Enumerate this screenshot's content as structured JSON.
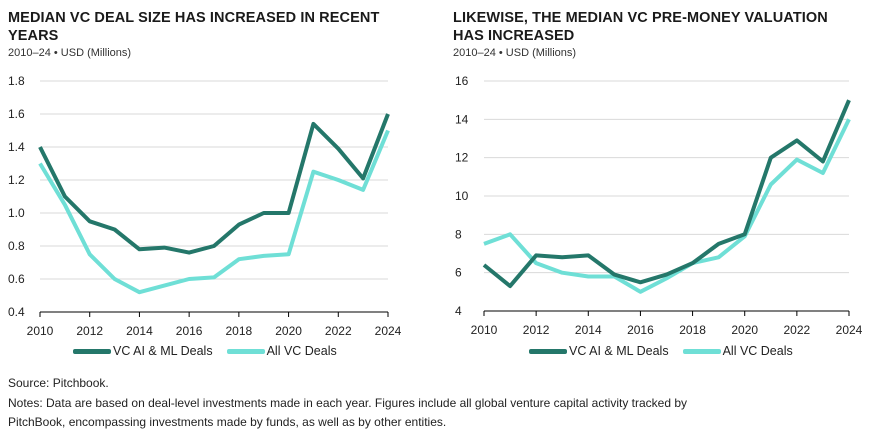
{
  "colors": {
    "ai_ml": "#24776a",
    "all_vc": "#6fdfd6",
    "grid": "#d9d9d9",
    "axis": "#000000"
  },
  "chart_data": [
    {
      "type": "line",
      "title": "MEDIAN VC DEAL SIZE HAS INCREASED IN RECENT YEARS",
      "subtitle": "2010–24 • USD (Millions)",
      "x": [
        2010,
        2011,
        2012,
        2013,
        2014,
        2015,
        2016,
        2017,
        2018,
        2019,
        2020,
        2021,
        2022,
        2023,
        2024
      ],
      "xticks": [
        2010,
        2012,
        2014,
        2016,
        2018,
        2020,
        2022,
        2024
      ],
      "yticks": [
        "0.4",
        "0.6",
        "0.8",
        "1.0",
        "1.2",
        "1.4",
        "1.6",
        "1.8"
      ],
      "ylim": [
        0.4,
        1.8
      ],
      "xlim": [
        2010,
        2024
      ],
      "grid": true,
      "legend_position": "bottom",
      "series": [
        {
          "name": "VC AI & ML Deals",
          "values": [
            1.4,
            1.1,
            0.95,
            0.9,
            0.78,
            0.79,
            0.76,
            0.8,
            0.93,
            1.0,
            1.0,
            1.54,
            1.39,
            1.21,
            1.6
          ]
        },
        {
          "name": "All VC Deals",
          "values": [
            1.3,
            1.05,
            0.75,
            0.6,
            0.52,
            0.56,
            0.6,
            0.61,
            0.72,
            0.74,
            0.75,
            1.25,
            1.2,
            1.14,
            1.5
          ]
        }
      ]
    },
    {
      "type": "line",
      "title": "LIKEWISE, THE MEDIAN VC PRE-MONEY VALUATION HAS INCREASED",
      "subtitle": "2010–24 • USD (Millions)",
      "x": [
        2010,
        2011,
        2012,
        2013,
        2014,
        2015,
        2016,
        2017,
        2018,
        2019,
        2020,
        2021,
        2022,
        2023,
        2024
      ],
      "xticks": [
        2010,
        2012,
        2014,
        2016,
        2018,
        2020,
        2022,
        2024
      ],
      "yticks": [
        "4",
        "6",
        "8",
        "10",
        "12",
        "14",
        "16"
      ],
      "ylim": [
        4,
        16
      ],
      "xlim": [
        2010,
        2024
      ],
      "grid": true,
      "legend_position": "bottom",
      "series": [
        {
          "name": "VC AI & ML Deals",
          "values": [
            6.4,
            5.3,
            6.9,
            6.8,
            6.9,
            5.9,
            5.5,
            5.9,
            6.5,
            7.5,
            8.0,
            12.0,
            12.9,
            11.8,
            15.0
          ]
        },
        {
          "name": "All VC Deals",
          "values": [
            7.5,
            8.0,
            6.5,
            6.0,
            5.8,
            5.8,
            5.0,
            5.7,
            6.5,
            6.8,
            7.9,
            10.6,
            11.9,
            11.2,
            14.0
          ]
        }
      ]
    }
  ],
  "footer": {
    "source": "Source: Pitchbook.",
    "notes_line1": "Notes: Data are based on deal-level investments made in each year. Figures include all global venture capital activity tracked by",
    "notes_line2": "PitchBook, encompassing investments made by funds, as well as by other entities."
  }
}
